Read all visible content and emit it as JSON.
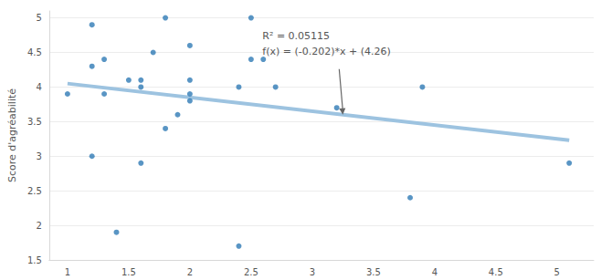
{
  "chart_data": {
    "type": "scatter",
    "y_label": "Score d'agréabilité",
    "xlim": [
      0.85,
      5.3
    ],
    "xticks": [
      1,
      1.5,
      2,
      2.5,
      3,
      3.5,
      4,
      4.5,
      5
    ],
    "ylim": [
      1.5,
      5.1
    ],
    "yticks": [
      1.5,
      2,
      2.5,
      3,
      3.5,
      4,
      4.5,
      5
    ],
    "grid": true,
    "series": [
      {
        "type": "scatter",
        "color": "#2f7ab5",
        "marker": "circle",
        "x": [
          1.0,
          1.2,
          1.2,
          1.2,
          1.3,
          1.3,
          1.4,
          1.5,
          1.6,
          1.6,
          1.6,
          1.7,
          1.8,
          1.8,
          1.9,
          2.0,
          2.0,
          2.0,
          2.0,
          2.4,
          2.4,
          2.5,
          2.5,
          2.6,
          2.7,
          3.2,
          3.8,
          3.9,
          5.1
        ],
        "values": [
          3.9,
          4.9,
          4.3,
          3.0,
          4.4,
          3.9,
          1.9,
          4.1,
          4.1,
          4.0,
          2.9,
          4.5,
          5.0,
          3.4,
          3.6,
          4.6,
          4.1,
          3.9,
          3.8,
          4.0,
          1.7,
          5.0,
          4.4,
          4.4,
          4.0,
          3.7,
          2.4,
          4.0,
          2.9
        ]
      },
      {
        "type": "line",
        "color": "#9dc3e0",
        "line_style": "solid",
        "x": [
          1.0,
          5.1
        ],
        "values": [
          4.05,
          3.23
        ]
      }
    ],
    "annotation": {
      "text": [
        "R² = 0.05115",
        "f(x) = (-0.202)*x + (4.26)"
      ],
      "x": 3.25,
      "y": 3.6
    }
  }
}
